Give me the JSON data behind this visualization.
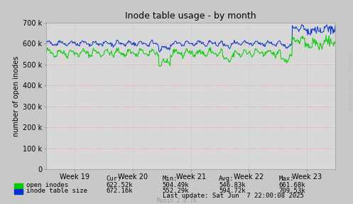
{
  "title": "Inode table usage - by month",
  "ylabel": "number of open inodes",
  "xlabel_ticks": [
    "Week 19",
    "Week 20",
    "Week 21",
    "Week 22",
    "Week 23"
  ],
  "ylim": [
    0,
    700000
  ],
  "yticks": [
    0,
    100000,
    200000,
    300000,
    400000,
    500000,
    600000,
    700000
  ],
  "ytick_labels": [
    "0",
    "100 k",
    "200 k",
    "300 k",
    "400 k",
    "500 k",
    "600 k",
    "700 k"
  ],
  "fig_bg_color": "#c8c8c8",
  "plot_bg_color": "#d8d8d8",
  "grid_h_color": "#ff9999",
  "grid_v_color": "#aaaaaa",
  "line_green_color": "#00cc00",
  "line_blue_color": "#0033cc",
  "legend": [
    "open inodes",
    "inode table size"
  ],
  "stats_cur": [
    "622.52k",
    "672.16k"
  ],
  "stats_min": [
    "504.49k",
    "552.29k"
  ],
  "stats_avg": [
    "546.83k",
    "594.72k"
  ],
  "stats_max": [
    "661.68k",
    "709.53k"
  ],
  "last_update": "Last update: Sat Jun  7 22:00:08 2025",
  "munin_version": "Munin 2.0.76",
  "watermark": "RRDTOOL / TOBI OETIKER"
}
